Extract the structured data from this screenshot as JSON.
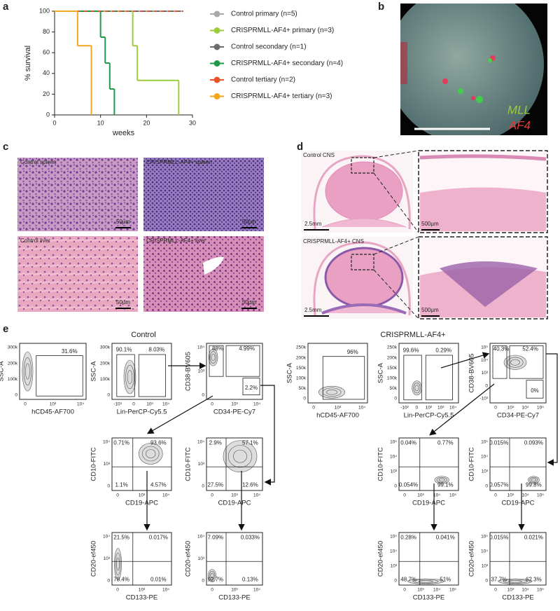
{
  "chart_data": {
    "type": "line",
    "step": true,
    "panel_label": "a",
    "xlabel": "weeks",
    "ylabel": "% survival",
    "xlim": [
      0,
      30
    ],
    "ylim": [
      0,
      100
    ],
    "xticks": [
      0,
      10,
      20,
      30
    ],
    "yticks": [
      0,
      20,
      40,
      60,
      80,
      100
    ],
    "series": [
      {
        "name": "Control primary (n=5)",
        "color": "#a9a9a9",
        "x": [
          0,
          28
        ],
        "values": [
          100,
          100
        ]
      },
      {
        "name": "CRISPRMLL-AF4+ primary (n=3)",
        "color": "#9ccc3c",
        "x": [
          0,
          17,
          18,
          27
        ],
        "values": [
          100,
          66.7,
          33.3,
          0
        ]
      },
      {
        "name": "Control secondary (n=1)",
        "color": "#6d6d6d",
        "x": [
          0,
          28
        ],
        "values": [
          100,
          100
        ]
      },
      {
        "name": "CRISPRMLL-AF4+ secondary (n=4)",
        "color": "#1e9a48",
        "x": [
          0,
          10,
          11,
          12,
          13
        ],
        "values": [
          100,
          75,
          50,
          25,
          0
        ]
      },
      {
        "name": "Control tertiary (n=2)",
        "color": "#e8552a",
        "x": [
          0,
          28
        ],
        "values": [
          100,
          100
        ]
      },
      {
        "name": "CRISPRMLL-AF4+ tertiary (n=3)",
        "color": "#f4a81d",
        "x": [
          0,
          5,
          8
        ],
        "values": [
          100,
          66.7,
          0
        ]
      }
    ]
  },
  "panel_b": {
    "label": "b",
    "probe_1": "MLL",
    "probe_2": "AF4"
  },
  "panel_c": {
    "label": "c",
    "images": [
      {
        "title": "Control spleen",
        "scale": "50µm"
      },
      {
        "title": "CRISPRMLL-AF4+ spleen",
        "scale": "50µm"
      },
      {
        "title": "Control liver",
        "scale": "50µm"
      },
      {
        "title": "CRISPRMLL-AF4+ liver",
        "scale": "50µm"
      }
    ]
  },
  "panel_d": {
    "label": "d",
    "images": [
      {
        "title": "Control CNS",
        "scale": "2.5mm",
        "zoom_scale": "500µm"
      },
      {
        "title": "CRISPRMLL-AF4+ CNS",
        "scale": "2.5mm",
        "zoom_scale": "500µm"
      }
    ]
  },
  "panel_e": {
    "label": "e",
    "groups": [
      {
        "title": "Control",
        "plots": [
          {
            "x_label": "hCD45-AF700",
            "y_label": "SSC-A",
            "x_ticks": [
              "0",
              "10³",
              "10⁴"
            ],
            "y_ticks": [
              "300k",
              "200k",
              "100k",
              "0"
            ],
            "gates": [
              "31.6%"
            ]
          },
          {
            "x_label": "Lin-PerCP-Cy5.5",
            "y_label": "SSC-A",
            "x_ticks": [
              "-10³",
              "0",
              "10³",
              "10⁴"
            ],
            "y_ticks": [
              "300k",
              "200k",
              "100k",
              "0"
            ],
            "gates": [
              "90.1%",
              "8.03%"
            ]
          },
          {
            "x_label": "CD34-PE-Cy7",
            "y_label": "CD38-BV605",
            "x_ticks": [
              "0",
              "10³",
              "10⁴"
            ],
            "y_ticks": [
              "10⁴",
              "10³",
              "0"
            ],
            "gates": [
              "88%",
              "4.99%",
              "2.2%"
            ]
          },
          {
            "x_label": "CD19-APC",
            "y_label": "CD10-FITC",
            "x_ticks": [
              "0",
              "10³",
              "10⁴"
            ],
            "y_ticks": [
              "10⁴",
              "10³",
              "0"
            ],
            "gates": [
              "0.71%",
              "93.6%",
              "1.1%",
              "4.57%"
            ]
          },
          {
            "x_label": "CD19-APC",
            "y_label": "CD10-FITC",
            "x_ticks": [
              "0",
              "10³",
              "10⁴"
            ],
            "y_ticks": [
              "10⁴",
              "10³",
              "0"
            ],
            "gates": [
              "2.9%",
              "57.1%",
              "27.5%",
              "12.6%"
            ]
          },
          {
            "x_label": "CD133-PE",
            "y_label": "CD20-ef450",
            "x_ticks": [
              "0",
              "10³",
              "10⁴"
            ],
            "y_ticks": [
              "10⁴",
              "10³",
              "0"
            ],
            "gates": [
              "21.5%",
              "0.017%",
              "78.4%",
              "0.01%"
            ]
          },
          {
            "x_label": "CD133-PE",
            "y_label": "CD20-ef450",
            "x_ticks": [
              "0",
              "10³",
              "10⁴"
            ],
            "y_ticks": [
              "10⁴",
              "10³",
              "0"
            ],
            "gates": [
              "7.09%",
              "0.033%",
              "92.7%",
              "0.13%"
            ]
          }
        ]
      },
      {
        "title": "CRISPRMLL-AF4+",
        "plots": [
          {
            "x_label": "hCD45-AF700",
            "y_label": "SSC-A",
            "x_ticks": [
              "0",
              "10³",
              "10⁴"
            ],
            "y_ticks": [
              "250k",
              "200k",
              "150k",
              "100k",
              "50k",
              "0"
            ],
            "gates": [
              "96%"
            ]
          },
          {
            "x_label": "Lin-PerCP-Cy5.5",
            "y_label": "SSC-A",
            "x_ticks": [
              "-10²",
              "0",
              "10²",
              "10³",
              "10⁴"
            ],
            "y_ticks": [
              "250k",
              "200k",
              "150k",
              "100k",
              "50k",
              "0"
            ],
            "gates": [
              "99.6%",
              "0.29%"
            ]
          },
          {
            "x_label": "CD34-PE-Cy7",
            "y_label": "CD38-BV605",
            "x_ticks": [
              "0",
              "10³",
              "10⁴",
              "10⁵"
            ],
            "y_ticks": [
              "10⁵",
              "10⁴",
              "10³",
              "0",
              "-10³"
            ],
            "gates": [
              "40.3%",
              "52.4%",
              "0%"
            ]
          },
          {
            "x_label": "CD19-APC",
            "y_label": "CD10-FITC",
            "x_ticks": [
              "0",
              "10³",
              "10⁴",
              "10⁵"
            ],
            "y_ticks": [
              "10⁵",
              "10⁴",
              "10³",
              "0"
            ],
            "gates": [
              "0.04%",
              "0.77%",
              "0.054%",
              "99.1%"
            ]
          },
          {
            "x_label": "CD19-APC",
            "y_label": "CD10-FITC",
            "x_ticks": [
              "0",
              "10³",
              "10⁴",
              "10⁵"
            ],
            "y_ticks": [
              "10⁵",
              "10⁴",
              "10³",
              "0"
            ],
            "gates": [
              "0.015%",
              "0.093%",
              "0.057%",
              "99.8%"
            ]
          },
          {
            "x_label": "CD133-PE",
            "y_label": "CD20-ef450",
            "x_ticks": [
              "0",
              "10³",
              "10⁴",
              "10⁵"
            ],
            "y_ticks": [
              "10⁵",
              "10⁴",
              "10³",
              "0"
            ],
            "gates": [
              "0.28%",
              "0.041%",
              "48.7%",
              "51%"
            ]
          },
          {
            "x_label": "CD133-PE",
            "y_label": "CD20-ef450",
            "x_ticks": [
              "0",
              "10³",
              "10⁴",
              "10⁵"
            ],
            "y_ticks": [
              "10⁵",
              "10⁴",
              "10³",
              "0"
            ],
            "gates": [
              "0.015%",
              "0.021%",
              "37.7%",
              "62.3%"
            ]
          }
        ]
      }
    ]
  }
}
